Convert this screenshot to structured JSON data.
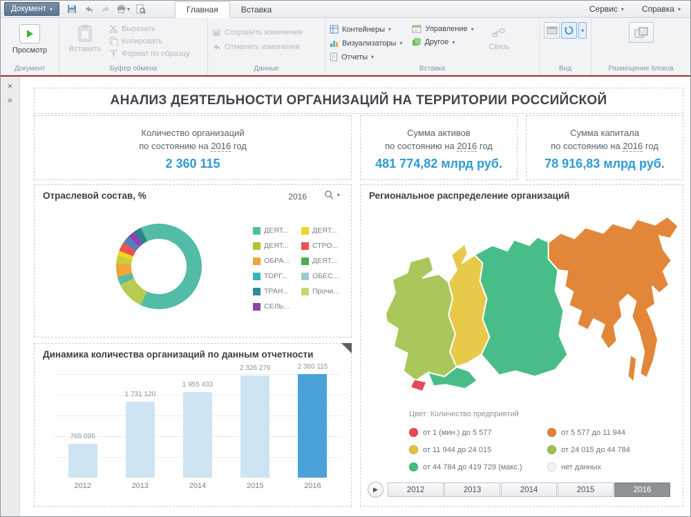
{
  "icons": {
    "caret_down": "▾",
    "close": "×",
    "expand": "»",
    "play": "▶"
  },
  "window": {
    "document_menu": "Документ",
    "tabs": [
      {
        "label": "Главная"
      },
      {
        "label": "Вставка"
      }
    ],
    "service_menu": "Сервис",
    "help_menu": "Справка"
  },
  "ribbon": {
    "groups": {
      "document": {
        "label": "Документ",
        "preview": "Просмотр"
      },
      "clipboard": {
        "label": "Буфер обмена",
        "paste": "Вставить",
        "cut": "Вырезать",
        "copy": "Копировать",
        "format_painter": "Формат по образцу"
      },
      "data": {
        "label": "Данные",
        "save_changes": "Сохранить изменения",
        "undo_changes": "Отменить изменения"
      },
      "insert": {
        "label": "Вставка",
        "containers": "Контейнеры",
        "visualizers": "Визуализаторы",
        "reports": "Отчеты",
        "management": "Управление",
        "other": "Другое",
        "link": "Связь"
      },
      "view": {
        "label": "Вид"
      },
      "layout": {
        "label": "Размещение блоков"
      }
    }
  },
  "dashboard": {
    "title": "АНАЛИЗ ДЕЯТЕЛЬНОСТИ ОРГАНИЗАЦИЙ НА ТЕРРИТОРИИ РОССИЙСКОЙ",
    "kpis": [
      {
        "line1": "Количество организаций",
        "prefix": "по состоянию на",
        "year": "2016",
        "suffix": "год",
        "value": "2 360 115"
      },
      {
        "line1": "Сумма активов",
        "prefix": "по состоянию на",
        "year": "2016",
        "suffix": "год",
        "value": "481 774,82 млрд руб."
      },
      {
        "line1": "Сумма капитала",
        "prefix": "по состоянию на",
        "year": "2016",
        "suffix": "год",
        "value": "78 916,83 млрд руб."
      }
    ]
  },
  "chart_data": [
    {
      "type": "pie",
      "subtype": "donut",
      "title": "Отраслевой состав, %",
      "year_filter": "2016",
      "segments": [
        {
          "color": "#52bca6",
          "value": 57
        },
        {
          "color": "#b8cc51",
          "value": 11
        },
        {
          "color": "#52bca6",
          "value": 3
        },
        {
          "color": "#f0a43c",
          "value": 5
        },
        {
          "color": "#c8cc3f",
          "value": 3
        },
        {
          "color": "#f5d327",
          "value": 2
        },
        {
          "color": "#e8544f",
          "value": 3.5
        },
        {
          "color": "#4f81bd",
          "value": 3
        },
        {
          "color": "#8e44ad",
          "value": 2.5
        },
        {
          "color": "#2e7f8f",
          "value": 3
        },
        {
          "color": "#52bca6",
          "value": 7
        }
      ],
      "legend": [
        {
          "label": "ДЕЯТ...",
          "color": "#52bca6"
        },
        {
          "label": "ДЕЯТ...",
          "color": "#b5c234"
        },
        {
          "label": "ОБРА...",
          "color": "#efa53c"
        },
        {
          "label": "ТОРГ...",
          "color": "#35b5c0"
        },
        {
          "label": "ТРАН...",
          "color": "#2b8c96"
        },
        {
          "label": "СЕЛЬ...",
          "color": "#8e44ad"
        },
        {
          "label": "ДЕЯТ...",
          "color": "#f2d22e"
        },
        {
          "label": "СТРО...",
          "color": "#e8544f"
        },
        {
          "label": "ДЕЯТ...",
          "color": "#4bae4f"
        },
        {
          "label": "ОБЕС...",
          "color": "#9fc8cf"
        },
        {
          "label": "Прочи...",
          "color": "#c3d96b"
        }
      ],
      "legend_position": "right"
    },
    {
      "type": "bar",
      "title": "Динамика количества организаций по данным отчетности",
      "categories": [
        "2012",
        "2013",
        "2014",
        "2015",
        "2016"
      ],
      "values": [
        765095,
        1731120,
        1955433,
        2326276,
        2360115
      ],
      "value_labels": [
        "765 095",
        "1 731 120",
        "1 955 433",
        "2 326 276",
        "2 360 115"
      ],
      "bar_colors": [
        "#cfe4f2",
        "#cfe4f2",
        "#cfe4f2",
        "#cfe4f2",
        "#4aa2d8"
      ],
      "ylim": [
        0,
        2360115
      ],
      "grid": true
    },
    {
      "type": "heatmap",
      "subtype": "choropleth-map",
      "title": "Региональное распределение организаций",
      "color_caption": "Цвет: Количество предприятий",
      "classes": [
        {
          "label": "от 1 (мин.) до 5 577",
          "color": "#e8485a"
        },
        {
          "label": "от 5 577 до 11 944",
          "color": "#e0832f"
        },
        {
          "label": "от 11 944 до 24 015",
          "color": "#e3c23c"
        },
        {
          "label": "от 24 015 до 44 784",
          "color": "#9ebf4f"
        },
        {
          "label": "от 44 784 до 419 729 (макс.)",
          "color": "#45bd85"
        },
        {
          "label": "нет данных",
          "color": "#f4f4f4"
        }
      ],
      "region_fills": {
        "west": "#a9c75b",
        "south": "#49bd88",
        "crimea": "#e8475a",
        "ural": "#e8c94a",
        "central": "#49bd88",
        "fareast": "#e2873a",
        "sakhalin": "#e2873a"
      },
      "years": [
        "2012",
        "2013",
        "2014",
        "2015",
        "2016"
      ],
      "selected_year": "2016"
    }
  ]
}
